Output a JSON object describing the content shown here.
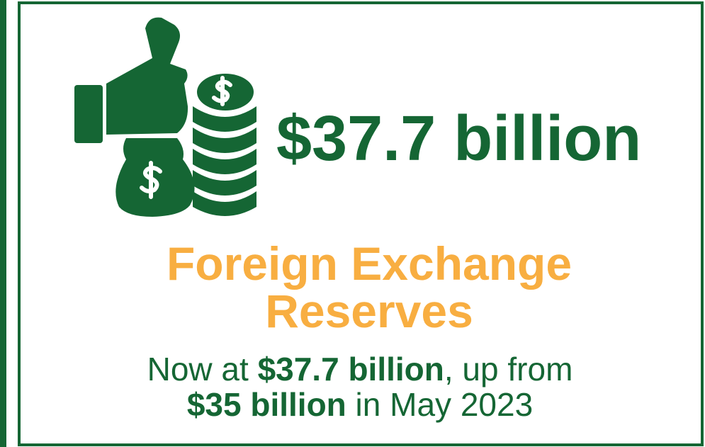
{
  "headline": "$37.7 billion",
  "title": {
    "lines": [
      "Foreign Exchange",
      "Reserves"
    ]
  },
  "description": {
    "lines": [
      [
        {
          "text": "Now at ",
          "bold": false
        },
        {
          "text": "$37.7 billion",
          "bold": true
        },
        {
          "text": ", up from",
          "bold": false
        }
      ],
      [
        {
          "text": "$35 billion",
          "bold": true
        },
        {
          "text": " in May 2023",
          "bold": false
        }
      ]
    ]
  }
}
